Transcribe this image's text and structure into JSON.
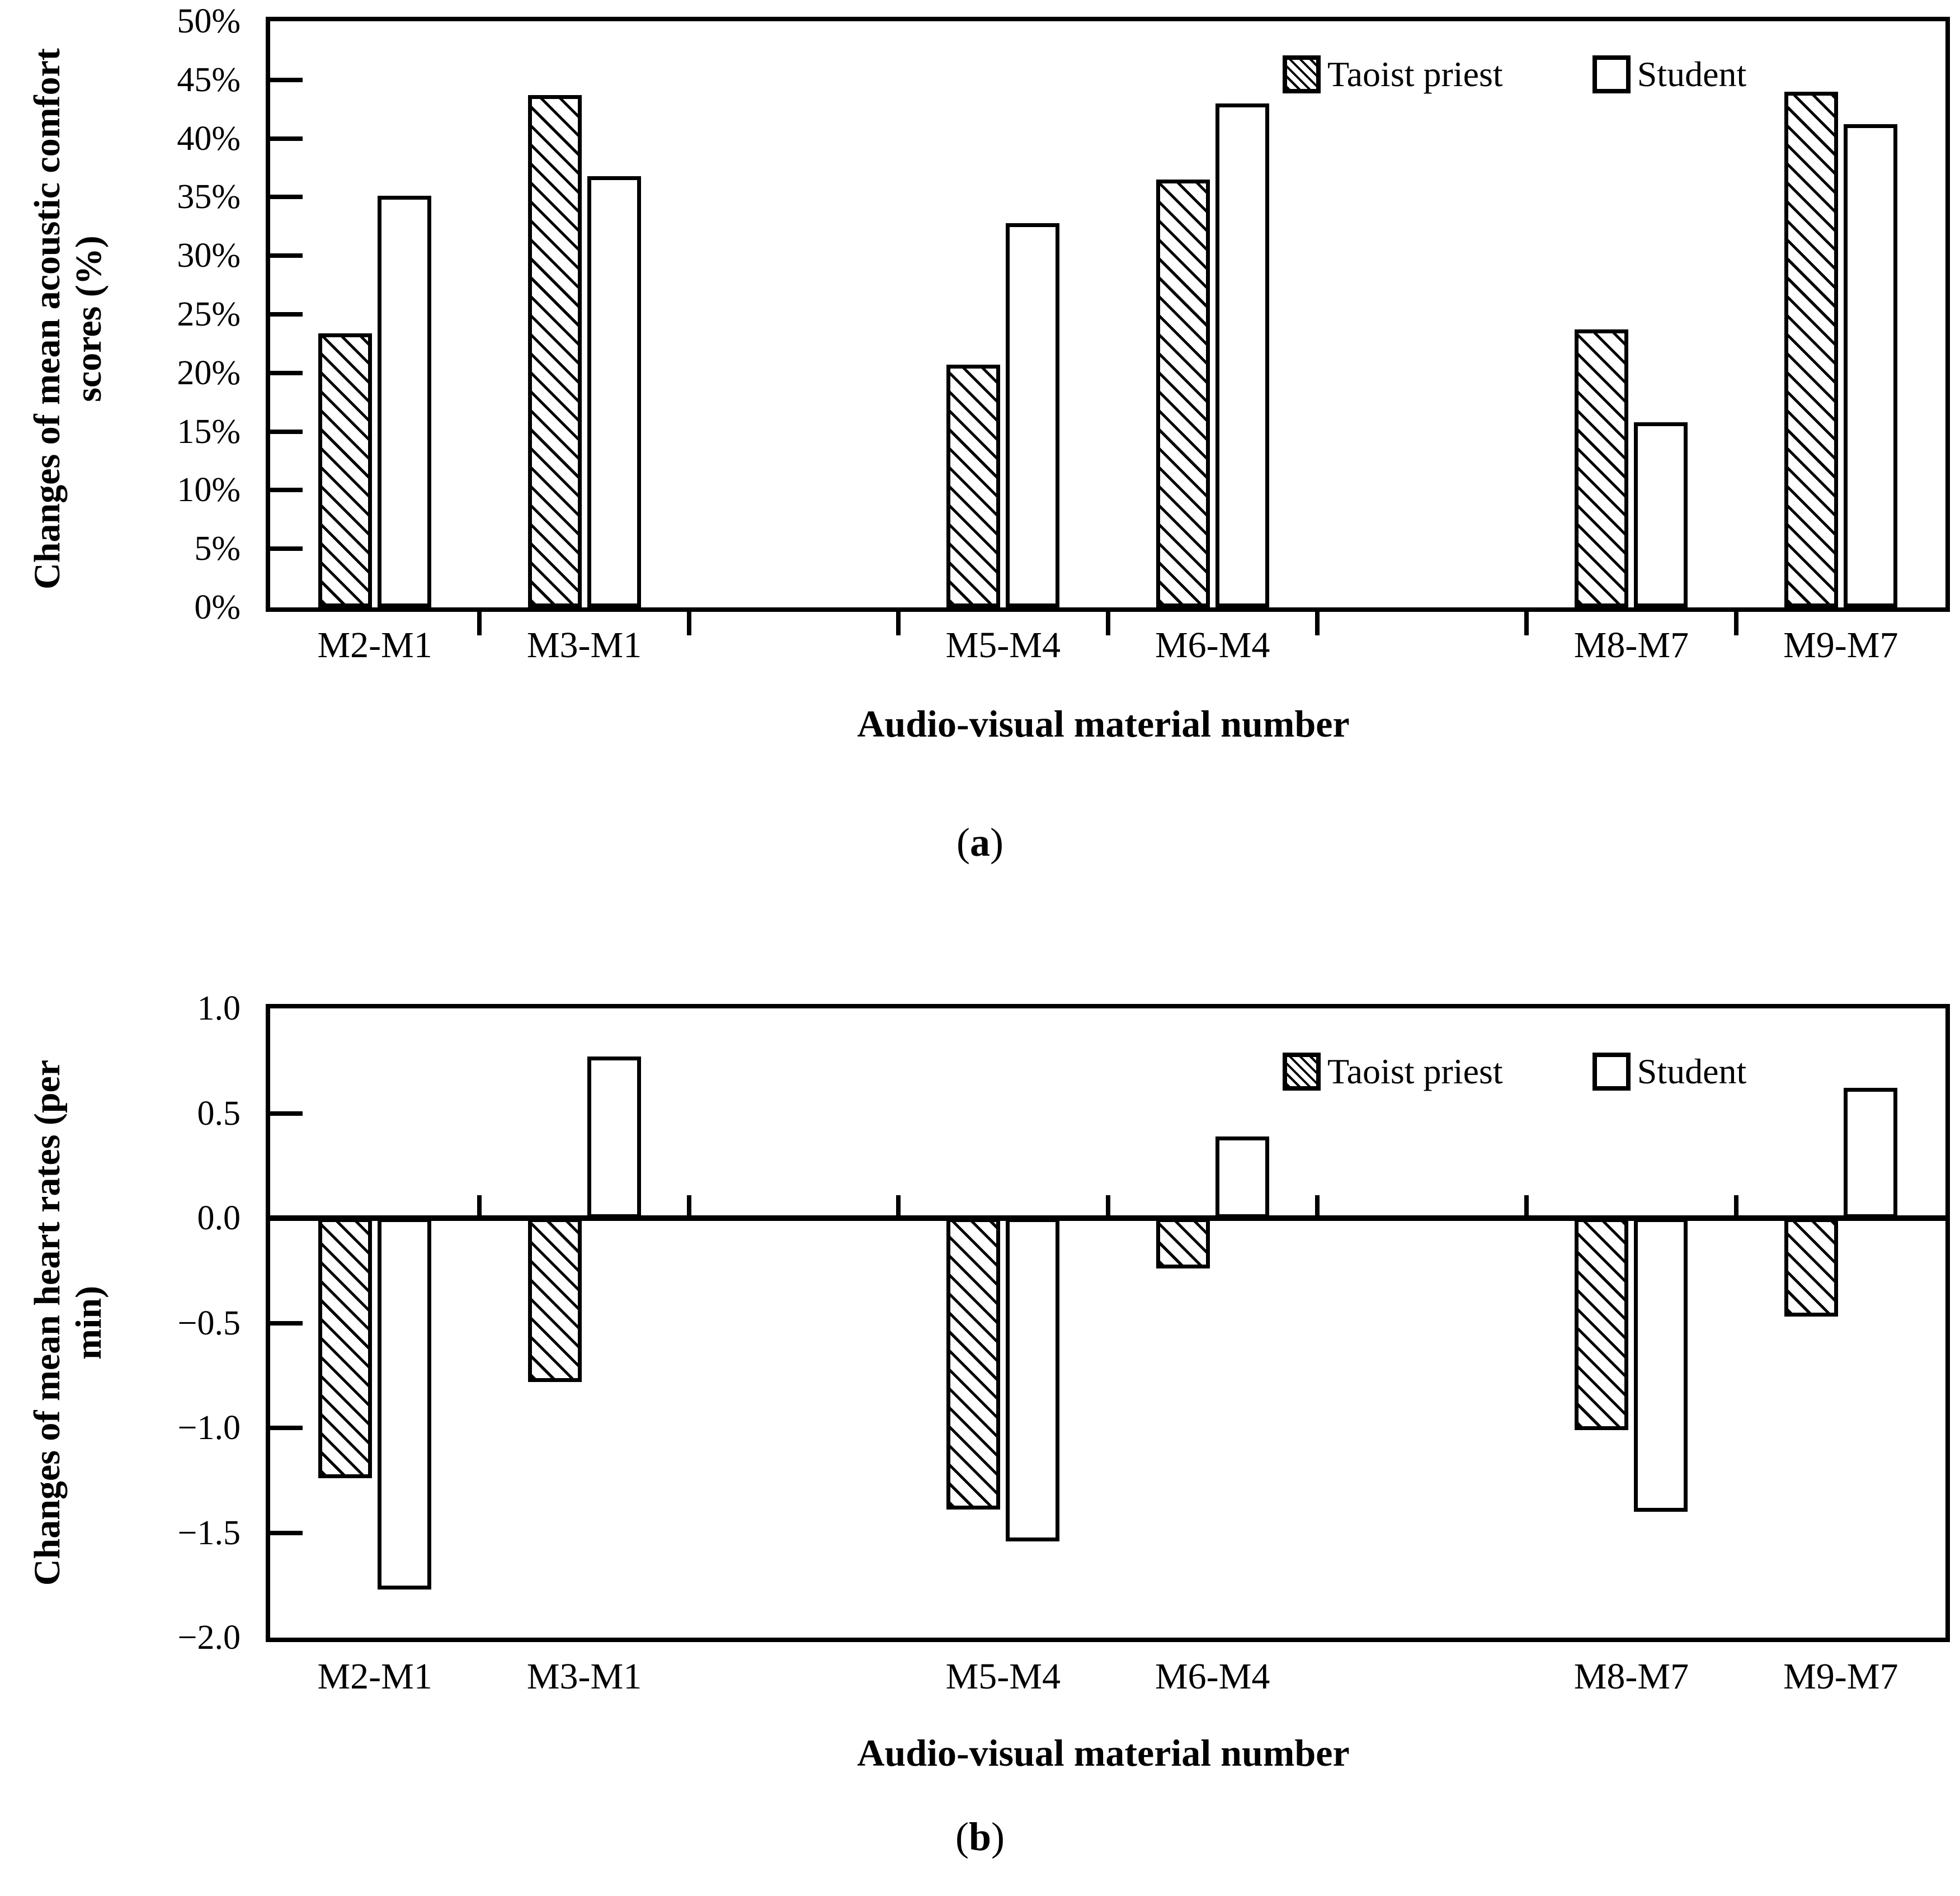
{
  "figure": {
    "captions": {
      "open": "(",
      "close": ")",
      "a": "a",
      "b": "b"
    }
  },
  "chart_data": [
    {
      "id": "a",
      "type": "bar",
      "title": "",
      "xlabel": "Audio-visual material number",
      "ylabel": "Changes of mean acoustic comfort scores (%)",
      "ylabel_lines": [
        "Changes of mean acoustic comfort",
        "scores (%)"
      ],
      "categories": [
        "M2-M1",
        "M3-M1",
        "M5-M4",
        "M6-M4",
        "M8-M7",
        "M9-M7"
      ],
      "series": [
        {
          "name": "Taoist priest",
          "style": "hatched",
          "values": [
            23.4,
            43.7,
            20.7,
            36.5,
            23.7,
            44.0
          ]
        },
        {
          "name": "Student",
          "style": "open",
          "values": [
            35.1,
            36.8,
            32.8,
            43.0,
            15.8,
            41.2
          ]
        }
      ],
      "value_unit": "percent",
      "ylim": [
        0,
        50
      ],
      "yticks": [
        {
          "label": "50%",
          "value": 50,
          "mark": false
        },
        {
          "label": "45%",
          "value": 45,
          "mark": true
        },
        {
          "label": "40%",
          "value": 40,
          "mark": true
        },
        {
          "label": "35%",
          "value": 35,
          "mark": true
        },
        {
          "label": "30%",
          "value": 30,
          "mark": true
        },
        {
          "label": "25%",
          "value": 25,
          "mark": true
        },
        {
          "label": "20%",
          "value": 20,
          "mark": true
        },
        {
          "label": "15%",
          "value": 15,
          "mark": true
        },
        {
          "label": "10%",
          "value": 10,
          "mark": true
        },
        {
          "label": "5%",
          "value": 5,
          "mark": true
        },
        {
          "label": "0%",
          "value": 0,
          "mark": false
        }
      ],
      "num_slots": 8,
      "slots": [
        0,
        1,
        3,
        4,
        6,
        7
      ],
      "grid": false,
      "zero_line": false,
      "legend_position": "top-right-inside"
    },
    {
      "id": "b",
      "type": "bar",
      "title": "",
      "xlabel": "Audio-visual material number",
      "ylabel": "Changes of mean heart rates (per min)",
      "ylabel_lines": [
        "Changes of mean heart rates (per",
        "min)"
      ],
      "categories": [
        "M2-M1",
        "M3-M1",
        "M5-M4",
        "M6-M4",
        "M8-M7",
        "M9-M7"
      ],
      "series": [
        {
          "name": "Taoist priest",
          "style": "hatched",
          "values": [
            -1.24,
            -0.78,
            -1.39,
            -0.24,
            -1.01,
            -0.47
          ]
        },
        {
          "name": "Student",
          "style": "open",
          "values": [
            -1.77,
            0.77,
            -1.54,
            0.39,
            -1.4,
            0.62
          ]
        }
      ],
      "value_unit": "per min",
      "ylim": [
        -2.0,
        1.0
      ],
      "yticks": [
        {
          "label": "1.0",
          "value": 1.0,
          "mark": false
        },
        {
          "label": "0.5",
          "value": 0.5,
          "mark": true
        },
        {
          "label": "0.0",
          "value": 0.0,
          "mark": false
        },
        {
          "label": "−0.5",
          "value": -0.5,
          "mark": true
        },
        {
          "label": "−1.0",
          "value": -1.0,
          "mark": true
        },
        {
          "label": "−1.5",
          "value": -1.5,
          "mark": true
        },
        {
          "label": "−2.0",
          "value": -2.0,
          "mark": false
        }
      ],
      "num_slots": 8,
      "slots": [
        0,
        1,
        3,
        4,
        6,
        7
      ],
      "grid": false,
      "zero_line": true,
      "legend_position": "top-right-inside"
    }
  ]
}
